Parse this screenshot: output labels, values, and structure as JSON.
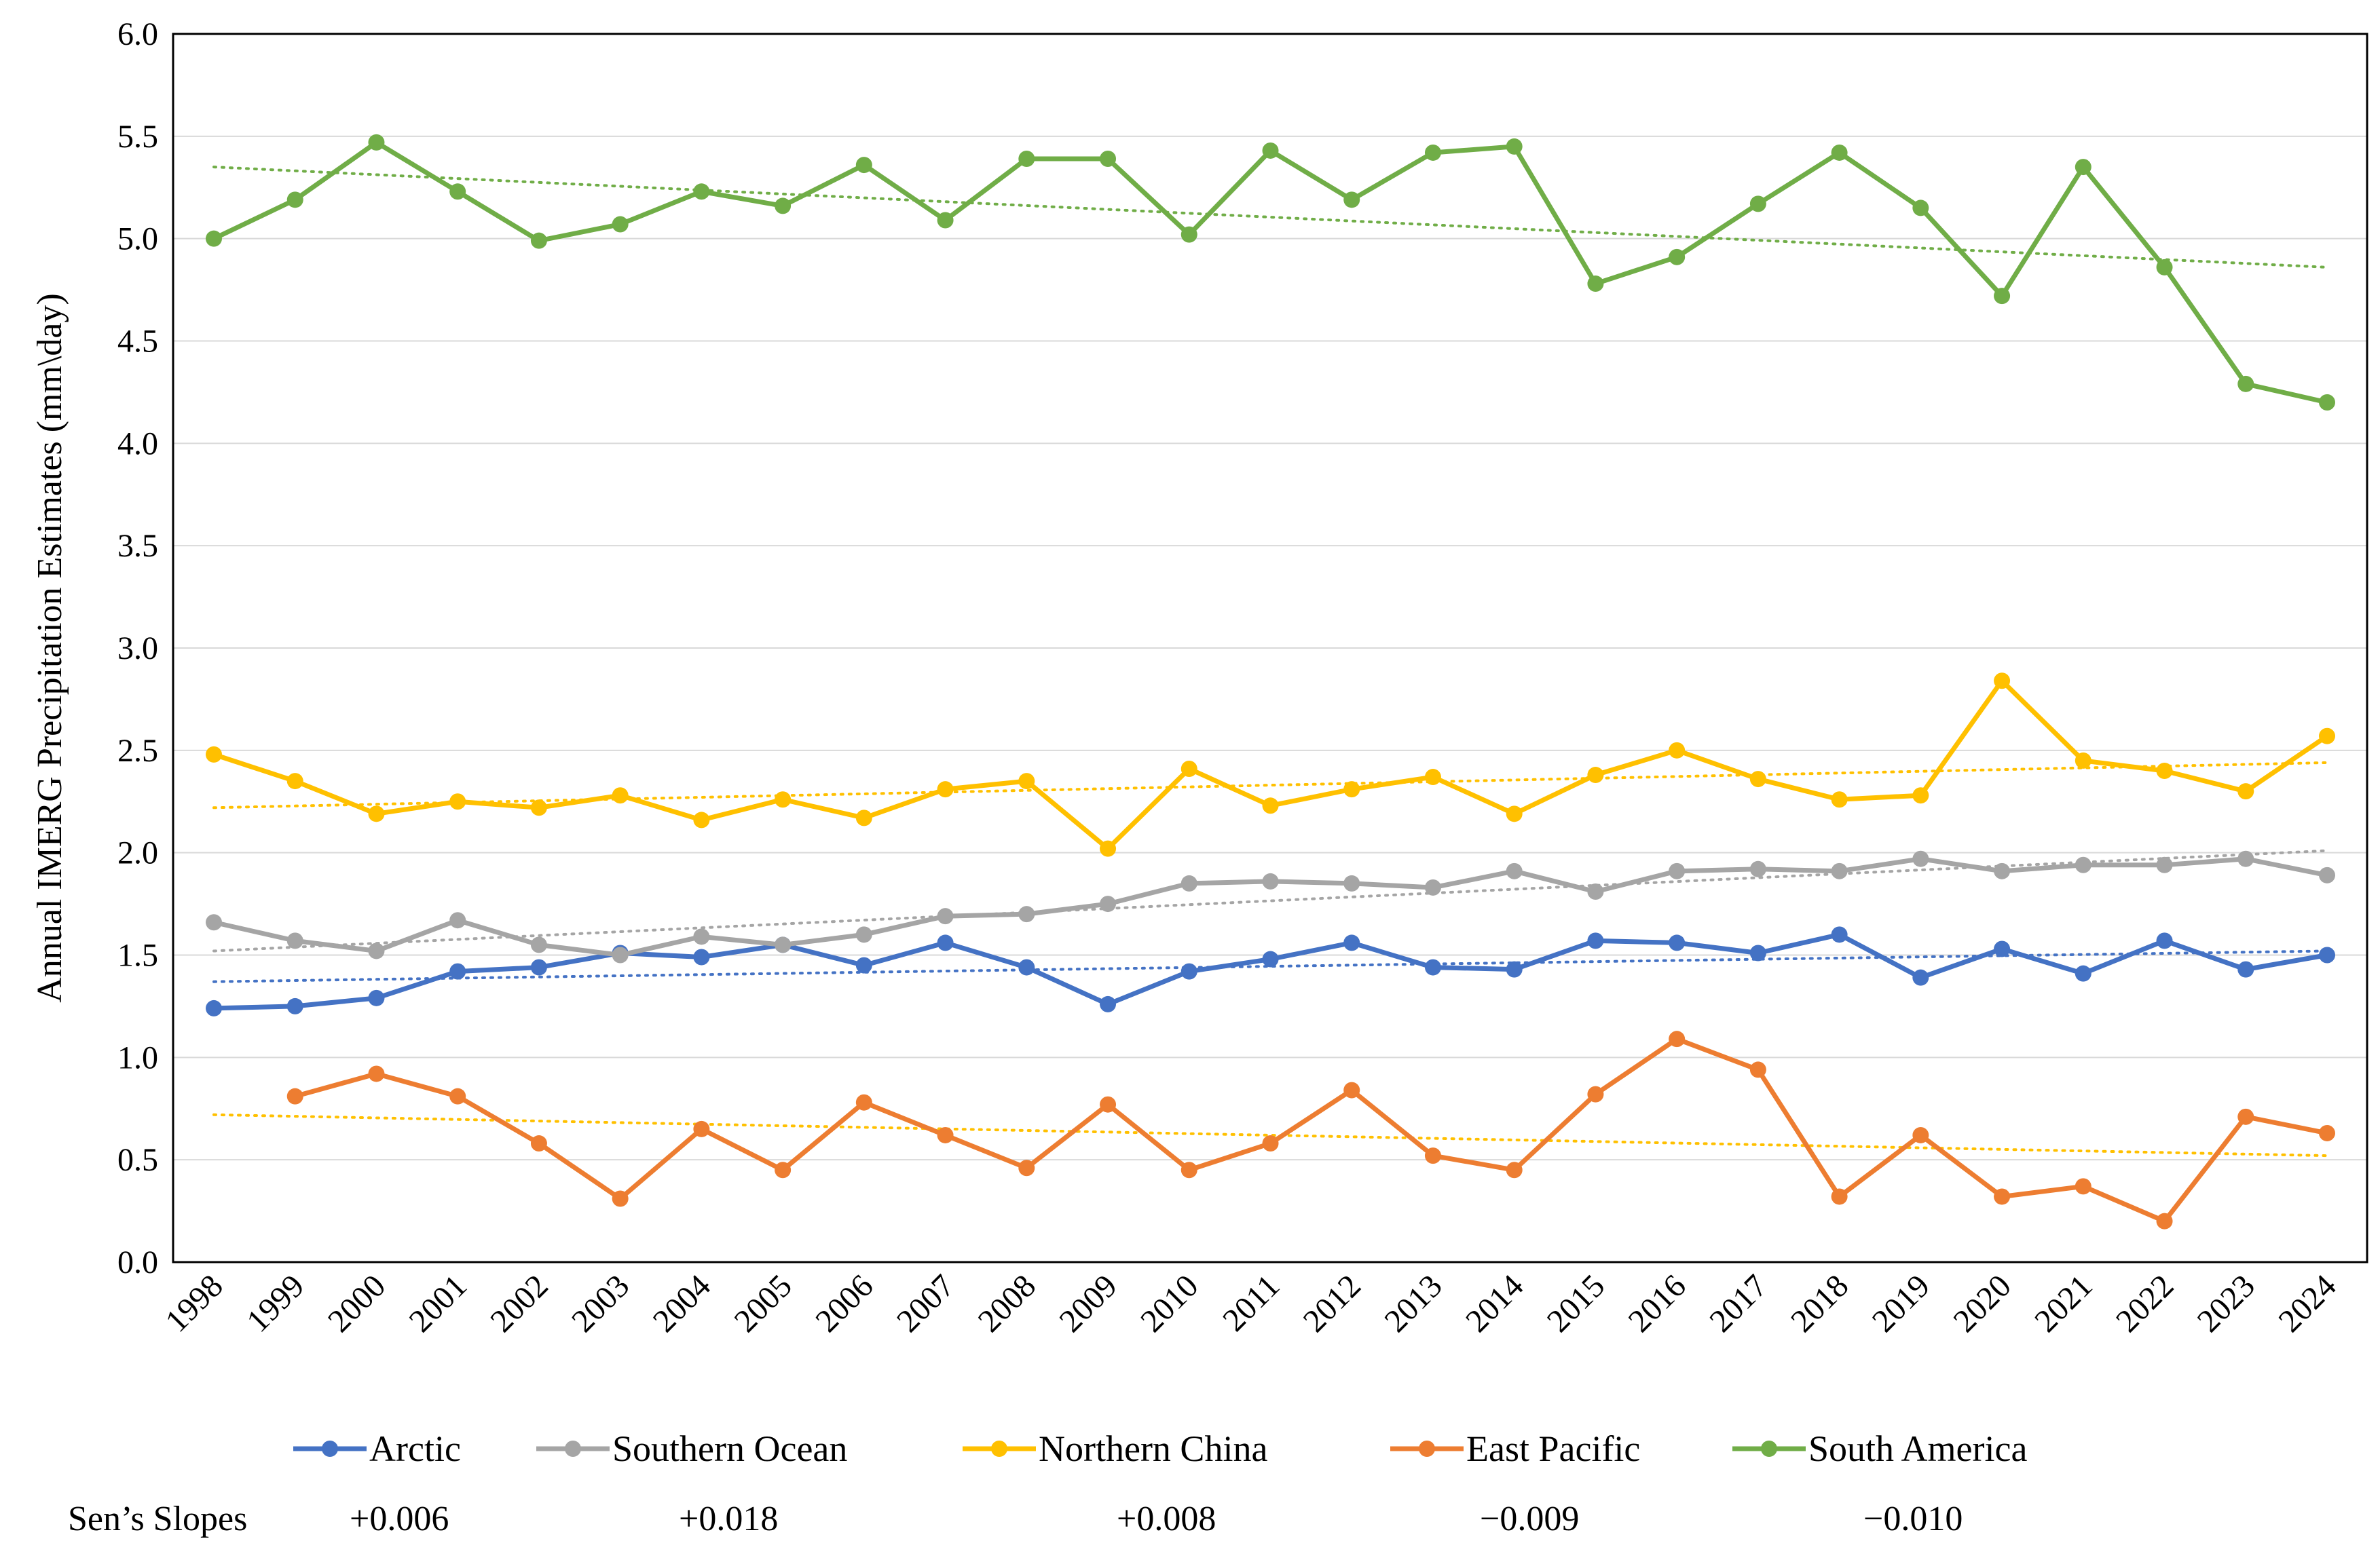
{
  "chart_data": {
    "type": "line",
    "title": "",
    "xlabel": "",
    "ylabel": "Annual IMERG Precipitation Estimates (mm\\day)",
    "ylim": [
      0.0,
      6.0
    ],
    "y_ticks": [
      "0.0",
      "0.5",
      "1.0",
      "1.5",
      "2.0",
      "2.5",
      "3.0",
      "3.5",
      "4.0",
      "4.5",
      "5.0",
      "5.5",
      "6.0"
    ],
    "grid": true,
    "legend_position": "bottom",
    "categories": [
      "1998",
      "1999",
      "2000",
      "2001",
      "2002",
      "2003",
      "2004",
      "2005",
      "2006",
      "2007",
      "2008",
      "2009",
      "2010",
      "2011",
      "2012",
      "2013",
      "2014",
      "2015",
      "2016",
      "2017",
      "2018",
      "2019",
      "2020",
      "2021",
      "2022",
      "2023",
      "2024"
    ],
    "series": [
      {
        "name": "Arctic",
        "color": "#4472C4",
        "trend_color": "#4472C4",
        "trend": [
          1.37,
          1.52
        ],
        "values": [
          1.24,
          1.25,
          1.29,
          1.42,
          1.44,
          1.51,
          1.49,
          1.55,
          1.45,
          1.56,
          1.44,
          1.26,
          1.42,
          1.48,
          1.56,
          1.44,
          1.43,
          1.57,
          1.56,
          1.51,
          1.6,
          1.39,
          1.53,
          1.41,
          1.57,
          1.43,
          1.5
        ]
      },
      {
        "name": "Southern Ocean",
        "color": "#A5A5A5",
        "trend_color": "#A5A5A5",
        "trend": [
          1.52,
          2.01
        ],
        "values": [
          1.66,
          1.57,
          1.52,
          1.67,
          1.55,
          1.5,
          1.59,
          1.55,
          1.6,
          1.69,
          1.7,
          1.75,
          1.85,
          1.86,
          1.85,
          1.83,
          1.91,
          1.81,
          1.91,
          1.92,
          1.91,
          1.97,
          1.91,
          1.94,
          1.94,
          1.97,
          1.89
        ]
      },
      {
        "name": "Northern China",
        "color": "#FFC000",
        "trend_color": "#FFC000",
        "trend": [
          2.22,
          2.44
        ],
        "values": [
          2.48,
          2.35,
          2.19,
          2.25,
          2.22,
          2.28,
          2.16,
          2.26,
          2.17,
          2.31,
          2.35,
          2.02,
          2.41,
          2.23,
          2.31,
          2.37,
          2.19,
          2.38,
          2.5,
          2.36,
          2.26,
          2.28,
          2.84,
          2.45,
          2.4,
          2.3,
          2.57
        ]
      },
      {
        "name": "East Pacific",
        "color": "#ED7D31",
        "trend_color": "#FFC000",
        "trend": [
          0.72,
          0.52
        ],
        "values": [
          null,
          0.81,
          0.92,
          0.81,
          0.58,
          0.31,
          0.65,
          0.45,
          0.78,
          0.62,
          0.46,
          0.77,
          0.45,
          0.58,
          0.84,
          0.52,
          0.45,
          0.82,
          1.09,
          0.94,
          0.32,
          0.62,
          0.32,
          0.37,
          0.2,
          0.71,
          0.63
        ]
      },
      {
        "name": "South America",
        "color": "#70AD47",
        "trend_color": "#70AD47",
        "trend": [
          5.35,
          4.86
        ],
        "values": [
          5.0,
          5.19,
          5.47,
          5.23,
          4.99,
          5.07,
          5.23,
          5.16,
          5.36,
          5.09,
          5.39,
          5.39,
          5.02,
          5.43,
          5.19,
          5.42,
          5.45,
          4.78,
          4.91,
          5.17,
          5.42,
          5.15,
          4.72,
          5.35,
          4.86,
          4.29,
          4.2
        ]
      }
    ],
    "sens_slopes": {
      "label": "Sen’s Slopes",
      "values": [
        "+0.006",
        "+0.018",
        "+0.008",
        "−0.009",
        "−0.010"
      ]
    }
  }
}
